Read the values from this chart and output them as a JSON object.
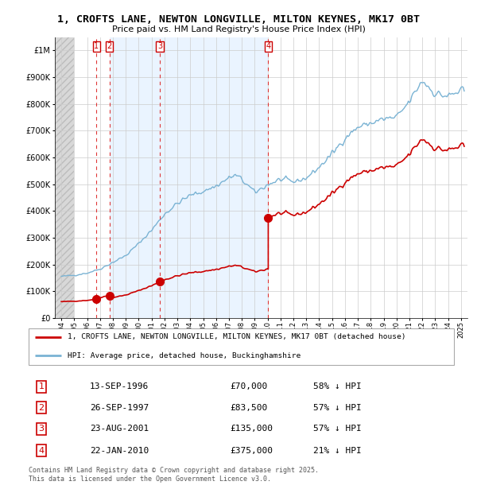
{
  "title": "1, CROFTS LANE, NEWTON LONGVILLE, MILTON KEYNES, MK17 0BT",
  "subtitle": "Price paid vs. HM Land Registry's House Price Index (HPI)",
  "sale_dates_num": [
    1996.71,
    1997.74,
    2001.64,
    2010.05
  ],
  "sale_prices": [
    70000,
    83500,
    135000,
    375000
  ],
  "sale_labels": [
    "1",
    "2",
    "3",
    "4"
  ],
  "sale_info": [
    {
      "label": "1",
      "date": "13-SEP-1996",
      "price": "£70,000",
      "pct": "58% ↓ HPI"
    },
    {
      "label": "2",
      "date": "26-SEP-1997",
      "price": "£83,500",
      "pct": "57% ↓ HPI"
    },
    {
      "label": "3",
      "date": "23-AUG-2001",
      "price": "£135,000",
      "pct": "57% ↓ HPI"
    },
    {
      "label": "4",
      "date": "22-JAN-2010",
      "price": "£375,000",
      "pct": "21% ↓ HPI"
    }
  ],
  "legend_line1": "1, CROFTS LANE, NEWTON LONGVILLE, MILTON KEYNES, MK17 0BT (detached house)",
  "legend_line2": "HPI: Average price, detached house, Buckinghamshire",
  "footer": "Contains HM Land Registry data © Crown copyright and database right 2025.\nThis data is licensed under the Open Government Licence v3.0.",
  "line_color_sold": "#cc0000",
  "line_color_hpi": "#7ab3d4",
  "shade_color": "#ddeeff",
  "grid_color": "#cccccc",
  "vline_color": "#dd2222",
  "hatch_color": "#c8c8c8",
  "ylim": [
    0,
    1050000
  ],
  "yticks": [
    0,
    100000,
    200000,
    300000,
    400000,
    500000,
    600000,
    700000,
    800000,
    900000,
    1000000
  ],
  "ytick_labels": [
    "£0",
    "£100K",
    "£200K",
    "£300K",
    "£400K",
    "£500K",
    "£600K",
    "£700K",
    "£800K",
    "£900K",
    "£1M"
  ]
}
